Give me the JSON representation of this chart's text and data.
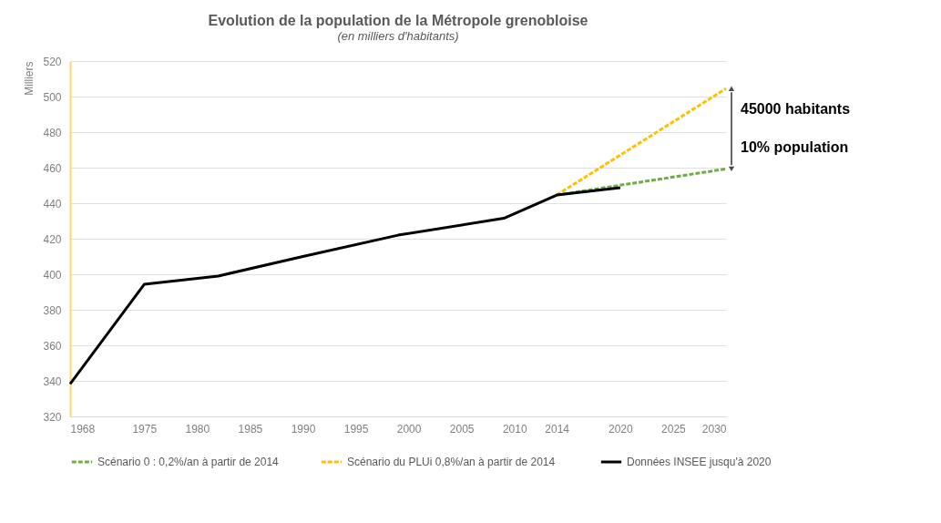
{
  "chart_data": {
    "type": "line",
    "title": "Evolution de la population de la Métropole grenobloise",
    "subtitle": "(en milliers d'habitants)",
    "ylabel": "Milliers",
    "xlim": [
      1968,
      2030
    ],
    "xticks": [
      1968,
      1975,
      1980,
      1985,
      1990,
      1995,
      2000,
      2005,
      2010,
      2014,
      2020,
      2025,
      2030
    ],
    "ylim": [
      320,
      520
    ],
    "yticks": [
      320,
      340,
      360,
      380,
      400,
      420,
      440,
      460,
      480,
      500,
      520
    ],
    "grid": "y",
    "legend": "bottom",
    "marker": "none",
    "series": [
      {
        "name": "Scénario 0 : 0,2%/an à partir de 2014",
        "color": "#70ad47",
        "line_style": "dashed",
        "x": [
          2014,
          2030
        ],
        "values": [
          444.6,
          459.3
        ]
      },
      {
        "name": "Scénario du PLUi  0,8%/an à partir de 2014",
        "color": "#ffc000",
        "line_style": "dashed",
        "x": [
          2014,
          2030
        ],
        "values": [
          444.6,
          504.5
        ]
      },
      {
        "name": "Données INSEE jusqu'à 2020",
        "color": "#000000",
        "line_style": "solid",
        "x": [
          1968,
          1975,
          1982,
          1990,
          1999,
          2009,
          2014,
          2020
        ],
        "values": [
          338.3,
          394.3,
          399,
          410,
          422,
          431.5,
          444.6,
          448.7
        ]
      }
    ],
    "annotations": [
      "45000 habitants",
      "10% population"
    ]
  }
}
